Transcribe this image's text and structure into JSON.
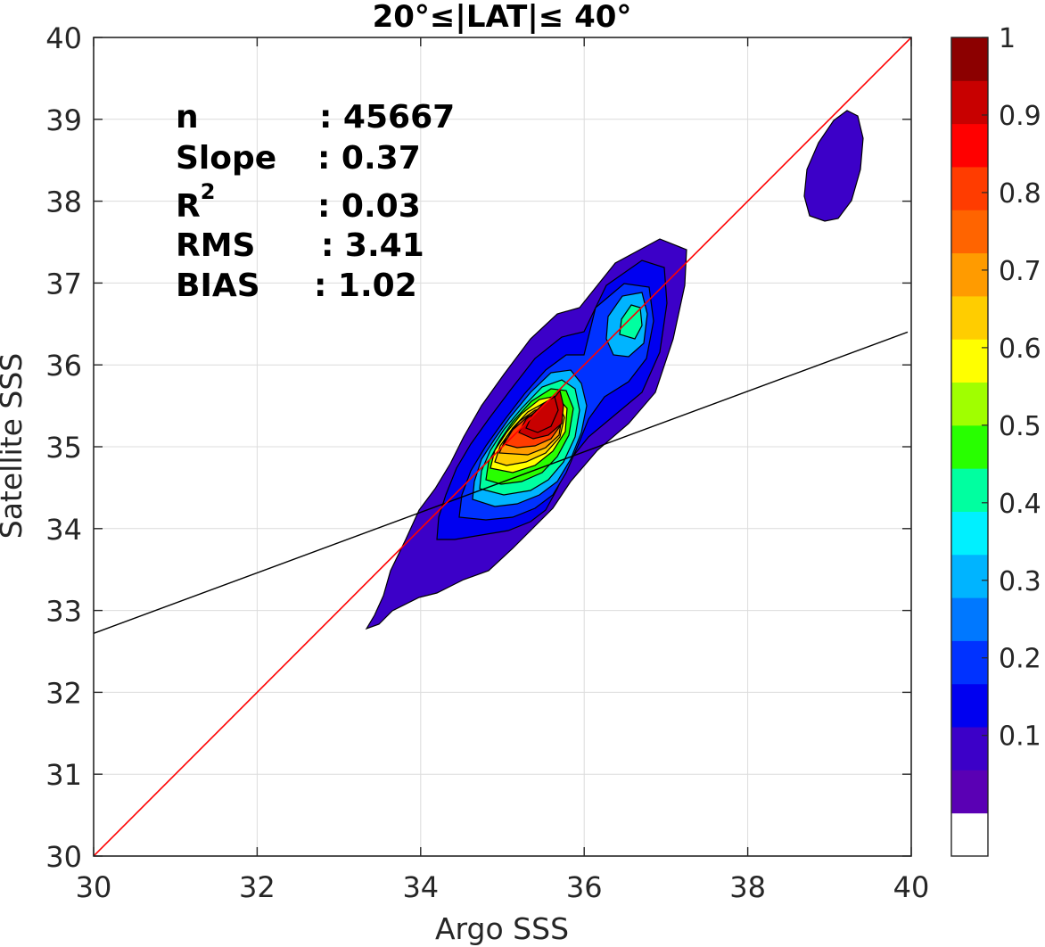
{
  "chart_data": {
    "type": "contour-density",
    "title": "20°≤|LAT|≤ 40°",
    "xlabel": "Argo SSS",
    "ylabel": "Satellite SSS",
    "xlim": [
      30,
      40
    ],
    "ylim": [
      30,
      40
    ],
    "x_ticks": [
      "30",
      "32",
      "34",
      "36",
      "38",
      "40"
    ],
    "y_ticks": [
      "30",
      "31",
      "32",
      "33",
      "34",
      "35",
      "36",
      "37",
      "38",
      "39",
      "40"
    ],
    "grid": true,
    "stats": [
      {
        "label": "n",
        "sep": ":",
        "value": "45667"
      },
      {
        "label": "Slope",
        "sep": ":",
        "value": "0.37"
      },
      {
        "label": "R",
        "sup": "2",
        "sep": ":",
        "value": "0.03"
      },
      {
        "label": "RMS",
        "sep": ":",
        "value": "3.41"
      },
      {
        "label": "BIAS",
        "sep": ":",
        "value": "1.02"
      }
    ],
    "one_to_one_line": {
      "color": "#ff0000",
      "from": [
        30,
        30
      ],
      "to": [
        40,
        40
      ]
    },
    "regression_line": {
      "color": "#000000",
      "from": [
        30,
        32.72
      ],
      "to": [
        40,
        36.39
      ]
    },
    "density_peaks": [
      {
        "x": 35.5,
        "y": 35.4,
        "value": 0.95
      },
      {
        "x": 36.6,
        "y": 36.5,
        "value": 0.45
      },
      {
        "x": 39.0,
        "y": 38.4,
        "value": 0.1
      }
    ],
    "colorbar": {
      "ticks": [
        "0.1",
        "0.2",
        "0.3",
        "0.4",
        "0.5",
        "0.6",
        "0.7",
        "0.8",
        "0.9",
        "1"
      ],
      "levels": [
        "#ffffff",
        "#5a00b4",
        "#3c00c8",
        "#0000f0",
        "#0032ff",
        "#0078ff",
        "#00b4ff",
        "#00f0ff",
        "#00ffa0",
        "#28ff00",
        "#a0ff00",
        "#ffff00",
        "#ffcd00",
        "#ff9b00",
        "#ff6400",
        "#ff3c00",
        "#ff0000",
        "#c80000",
        "#8c0000"
      ]
    }
  }
}
